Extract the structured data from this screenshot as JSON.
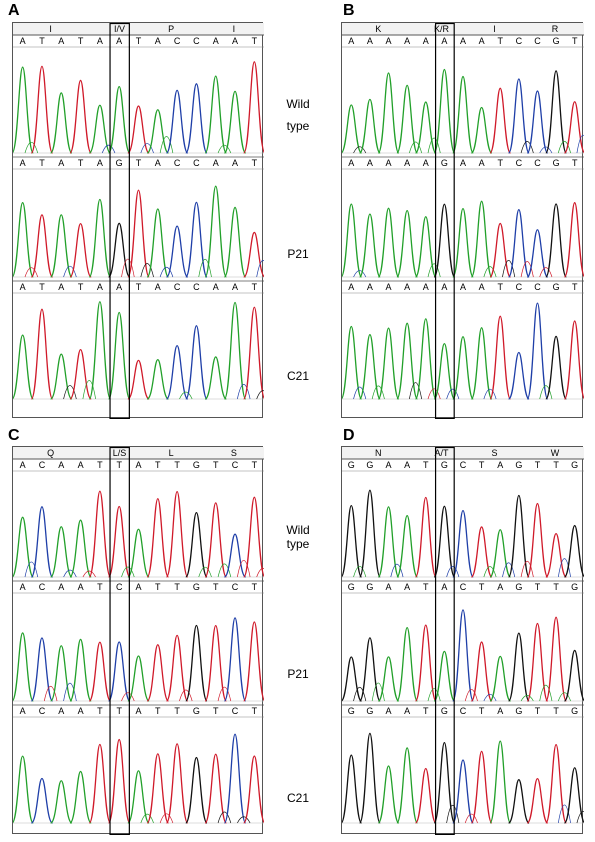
{
  "panels": [
    {
      "letter": "A",
      "codons": [
        "I",
        "I/V",
        "P",
        "I"
      ],
      "tracks": [
        {
          "bases": [
            "A",
            "T",
            "A",
            "T",
            "A",
            "A",
            "T",
            "A",
            "C",
            "C",
            "A",
            "A",
            "T"
          ]
        },
        {
          "bases": [
            "A",
            "T",
            "A",
            "T",
            "A",
            "G",
            "T",
            "A",
            "C",
            "C",
            "A",
            "A",
            "T"
          ]
        },
        {
          "bases": [
            "A",
            "T",
            "A",
            "T",
            "A",
            "A",
            "T",
            "A",
            "C",
            "C",
            "A",
            "A",
            "T"
          ]
        }
      ]
    },
    {
      "letter": "B",
      "codons": [
        "K",
        "K/R",
        "I",
        "R"
      ],
      "tracks": [
        {
          "bases": [
            "A",
            "A",
            "A",
            "A",
            "A",
            "A",
            "A",
            "A",
            "T",
            "C",
            "C",
            "G",
            "T"
          ]
        },
        {
          "bases": [
            "A",
            "A",
            "A",
            "A",
            "A",
            "G",
            "A",
            "A",
            "T",
            "C",
            "C",
            "G",
            "T"
          ]
        },
        {
          "bases": [
            "A",
            "A",
            "A",
            "A",
            "A",
            "A",
            "A",
            "A",
            "T",
            "C",
            "C",
            "G",
            "T"
          ]
        }
      ]
    },
    {
      "letter": "C",
      "codons": [
        "Q",
        "L/S",
        "L",
        "S"
      ],
      "tracks": [
        {
          "bases": [
            "A",
            "C",
            "A",
            "A",
            "T",
            "T",
            "A",
            "T",
            "T",
            "G",
            "T",
            "C",
            "T"
          ]
        },
        {
          "bases": [
            "A",
            "C",
            "A",
            "A",
            "T",
            "C",
            "A",
            "T",
            "T",
            "G",
            "T",
            "C",
            "T"
          ]
        },
        {
          "bases": [
            "A",
            "C",
            "A",
            "A",
            "T",
            "T",
            "A",
            "T",
            "T",
            "G",
            "T",
            "C",
            "T"
          ]
        }
      ]
    },
    {
      "letter": "D",
      "codons": [
        "N",
        "A/T",
        "S",
        "W"
      ],
      "tracks": [
        {
          "bases": [
            "G",
            "G",
            "A",
            "A",
            "T",
            "G",
            "C",
            "T",
            "A",
            "G",
            "T",
            "T",
            "G"
          ]
        },
        {
          "bases": [
            "G",
            "G",
            "A",
            "A",
            "T",
            "A",
            "C",
            "T",
            "A",
            "G",
            "T",
            "T",
            "G"
          ]
        },
        {
          "bases": [
            "G",
            "G",
            "A",
            "A",
            "T",
            "G",
            "C",
            "T",
            "A",
            "G",
            "T",
            "T",
            "G"
          ]
        }
      ]
    }
  ],
  "sample_labels": {
    "top": [
      "Wild",
      "type",
      "P21",
      "C21"
    ],
    "bottom": [
      "Wild",
      "type",
      "P21",
      "C21"
    ]
  },
  "base_colors": {
    "A": "#22a02a",
    "T": "#d01a2a",
    "C": "#1f3fa8",
    "G": "#111111"
  }
}
